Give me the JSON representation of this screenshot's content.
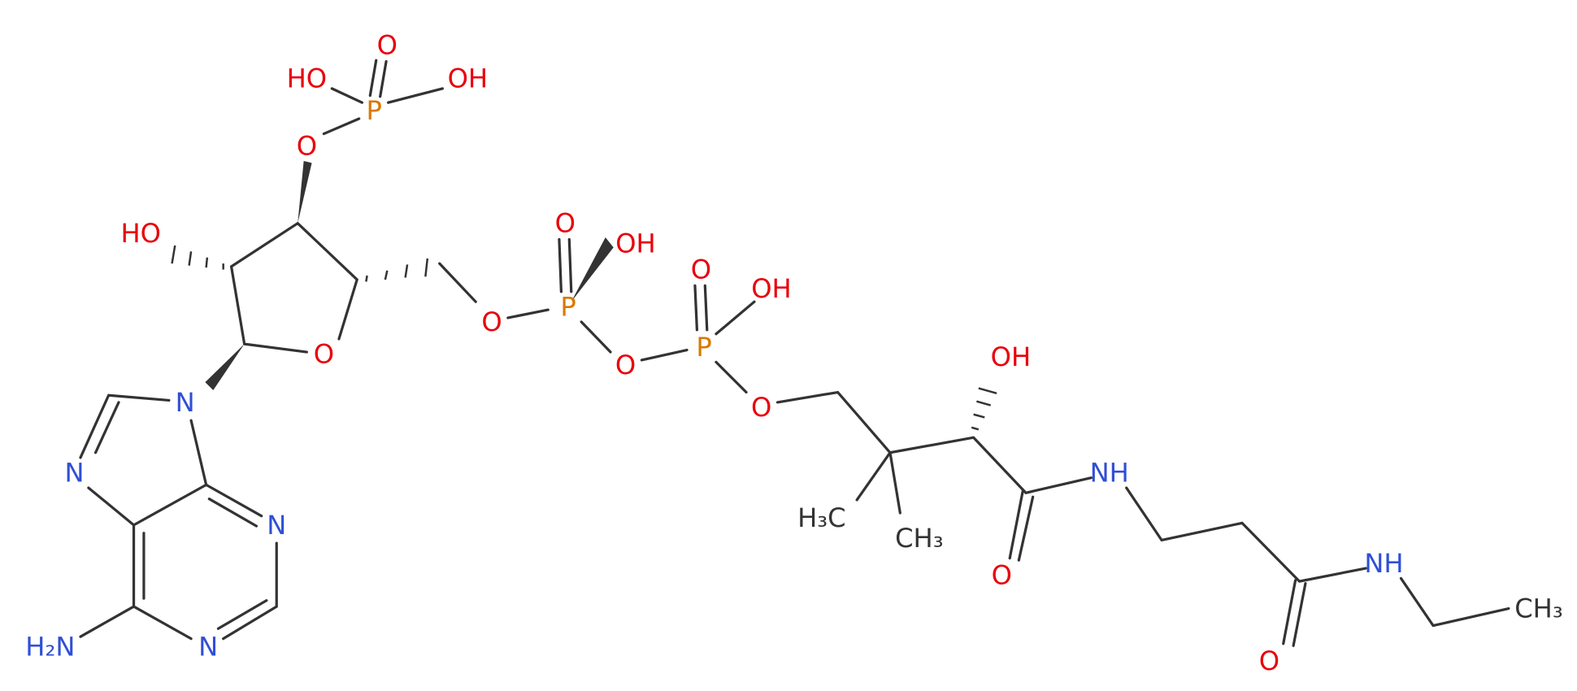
{
  "atoms": [
    {
      "label": "HO"
    },
    {
      "label": "O"
    },
    {
      "label": "OH"
    },
    {
      "label": "P"
    },
    {
      "label": "O"
    },
    {
      "label": "HO"
    },
    {
      "label": "O"
    },
    {
      "label": "O"
    },
    {
      "label": "OH"
    },
    {
      "label": "O"
    },
    {
      "label": "P"
    },
    {
      "label": "O"
    },
    {
      "label": "O"
    },
    {
      "label": "OH"
    },
    {
      "label": "P"
    },
    {
      "label": "O"
    },
    {
      "label": "OH"
    },
    {
      "label": "N"
    },
    {
      "label": "N"
    },
    {
      "label": "N"
    },
    {
      "label": "NH"
    },
    {
      "label": "H₃C"
    },
    {
      "label": "CH₃"
    },
    {
      "label": "O"
    },
    {
      "label": "N"
    },
    {
      "label": "H₂N"
    },
    {
      "label": "NH"
    },
    {
      "label": "CH₃"
    },
    {
      "label": "O"
    }
  ]
}
